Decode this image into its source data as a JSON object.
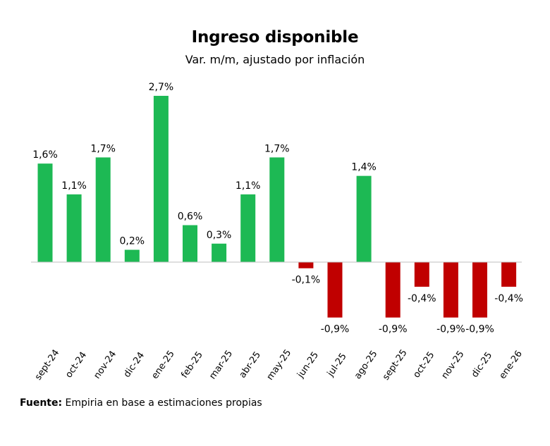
{
  "chart_data": {
    "type": "bar",
    "title": "Ingreso disponible",
    "subtitle": "Var. m/m, ajustado por inflación",
    "categories": [
      "sept-24",
      "oct-24",
      "nov-24",
      "dic-24",
      "ene-25",
      "feb-25",
      "mar-25",
      "abr-25",
      "may-25",
      "jun-25",
      "jul-25",
      "ago-25",
      "sept-25",
      "oct-25",
      "nov-25",
      "dic-25",
      "ene-26"
    ],
    "values": [
      1.6,
      1.1,
      1.7,
      0.2,
      2.7,
      0.6,
      0.3,
      1.1,
      1.7,
      -0.1,
      -0.9,
      1.4,
      -0.9,
      -0.4,
      -0.9,
      -0.9,
      -0.4
    ],
    "labels": [
      "1,6%",
      "1,1%",
      "1,7%",
      "0,2%",
      "2,7%",
      "0,6%",
      "0,3%",
      "1,1%",
      "1,7%",
      "-0,1%",
      "-0,9%",
      "1,4%",
      "-0,9%",
      "-0,4%",
      "-0,9%",
      "-0,9%",
      "-0,4%"
    ],
    "positive_color": "#1db954",
    "negative_color": "#c00000",
    "xlabel": "",
    "ylabel": "",
    "grid": false
  },
  "footer": {
    "label": "Fuente:",
    "text": "Empiria en base a estimaciones propias"
  }
}
